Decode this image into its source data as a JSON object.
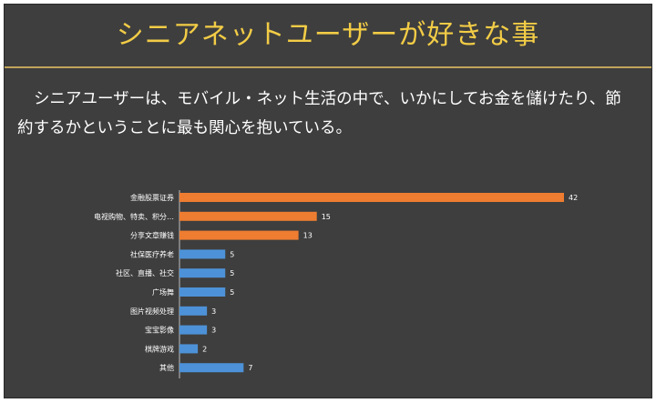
{
  "slide": {
    "title": "シニアネットユーザーが好きな事",
    "body": "シニアユーザーは、モバイル・ネット生活の中で、いかにしてお金を儲けたり、節約するかということに最も関心を抱いている。"
  },
  "colors": {
    "background": "#3e3e3e",
    "title": "#f2cc46",
    "divider": "#bfa45a",
    "highlight_bar": "#ee7d31",
    "normal_bar": "#4d92d8"
  },
  "chart_data": {
    "type": "bar",
    "orientation": "horizontal",
    "categories": [
      "金融股票证券",
      "电视购物、特卖、积分…",
      "分享文章赚钱",
      "社保医疗养老",
      "社区、直播、社交",
      "广场舞",
      "图片视频处理",
      "宝宝影像",
      "棋牌游戏",
      "其他"
    ],
    "values": [
      42,
      15,
      13,
      5,
      5,
      5,
      3,
      3,
      2,
      7
    ],
    "highlighted": [
      true,
      true,
      true,
      false,
      false,
      false,
      false,
      false,
      false,
      false
    ],
    "xlim": [
      0,
      42
    ],
    "grid": false,
    "legend": false,
    "data_labels": true
  }
}
